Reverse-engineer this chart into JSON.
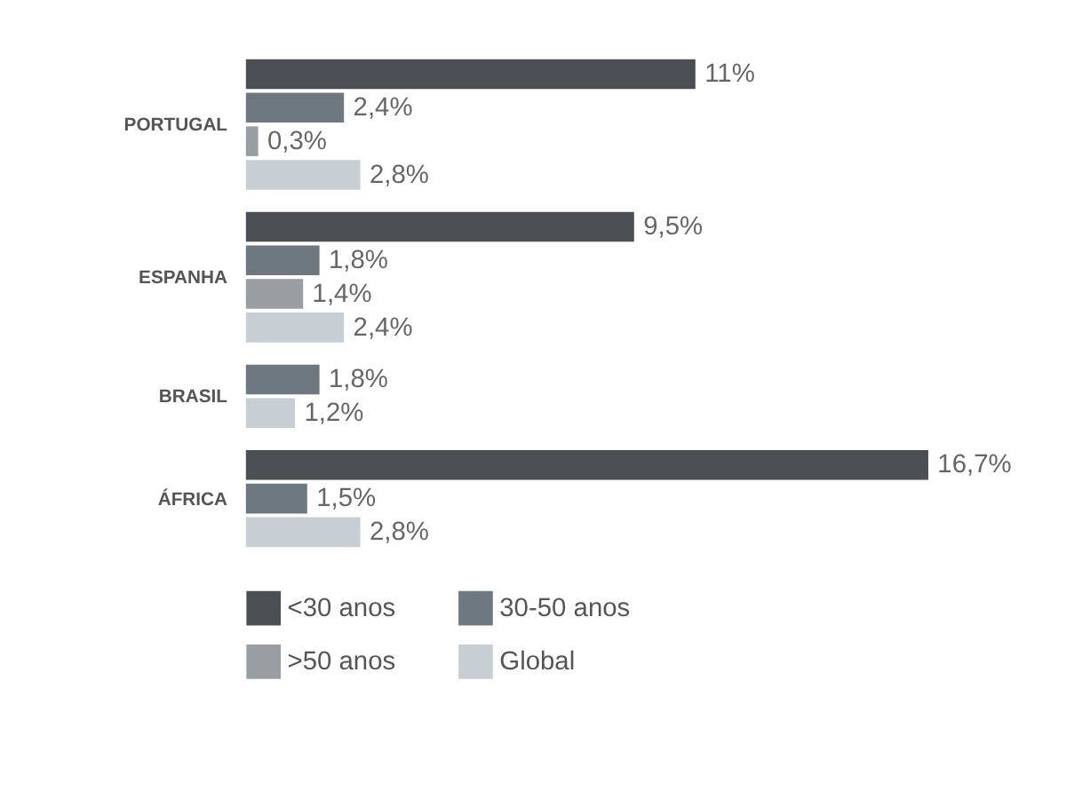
{
  "chart_data": {
    "type": "bar",
    "orientation": "horizontal",
    "categories": [
      "PORTUGAL",
      "ESPANHA",
      "BRASIL",
      "ÁFRICA"
    ],
    "series": [
      {
        "name": "<30 anos",
        "color": "#4b4e52",
        "values": [
          11,
          9.5,
          null,
          16.7
        ],
        "value_labels": [
          "11%",
          "9,5%",
          null,
          "16,7%"
        ]
      },
      {
        "name": "30-50 anos",
        "color": "#6d7880",
        "values": [
          2.4,
          1.8,
          1.8,
          1.5
        ],
        "value_labels": [
          "2,4%",
          "1,8%",
          "1,8%",
          "1,5%"
        ]
      },
      {
        "name": ">50 anos",
        "color": "#999ea2",
        "values": [
          0.3,
          1.4,
          null,
          null
        ],
        "value_labels": [
          "0,3%",
          "1,4%",
          null,
          null
        ]
      },
      {
        "name": "Global",
        "color": "#c8cfd4",
        "values": [
          2.8,
          2.4,
          1.2,
          2.8
        ],
        "value_labels": [
          "2,8%",
          "2,4%",
          "1,2%",
          "2,8%"
        ]
      }
    ],
    "legend": "bottom"
  }
}
